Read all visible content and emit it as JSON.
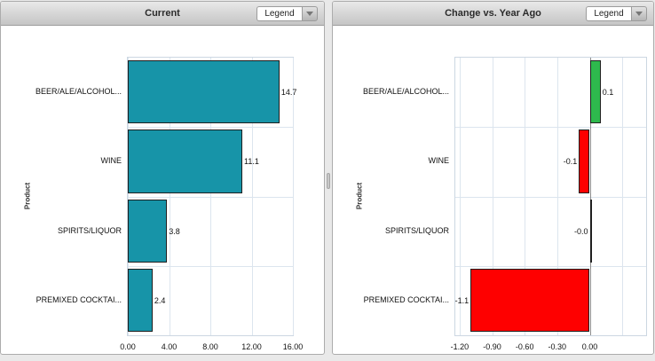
{
  "panels": [
    {
      "title": "Current",
      "legend_label": "Legend"
    },
    {
      "title": "Change vs. Year Ago",
      "legend_label": "Legend"
    }
  ],
  "splitter": {
    "orientation": "vertical"
  },
  "colors": {
    "bar_teal": "#1794a8",
    "bar_green": "#2eb94d",
    "bar_red": "#fe0000",
    "grid": "#dce5ee"
  },
  "chart_data": [
    {
      "type": "bar",
      "orientation": "horizontal",
      "title": "Current",
      "ylabel": "Product",
      "categories": [
        "BEER/ALE/ALCOHOL...",
        "WINE",
        "SPIRITS/LIQUOR",
        "PREMIXED COCKTAI..."
      ],
      "values": [
        14.7,
        11.1,
        3.8,
        2.4
      ],
      "value_labels": [
        "14.7",
        "11.1",
        "3.8",
        "2.4"
      ],
      "bar_colors": [
        "#1794a8",
        "#1794a8",
        "#1794a8",
        "#1794a8"
      ],
      "xlim": [
        0,
        16
      ],
      "grid_values": [
        0,
        4,
        8,
        12,
        16
      ],
      "tick_values": [
        0,
        4,
        8,
        12,
        16
      ],
      "tick_labels": [
        "0.00",
        "4.00",
        "8.00",
        "12.00",
        "16.00"
      ],
      "zero_line": false,
      "grid": true,
      "legend_position": "header-dropdown-collapsed"
    },
    {
      "type": "bar",
      "orientation": "horizontal",
      "title": "Change vs. Year Ago",
      "ylabel": "Product",
      "categories": [
        "BEER/ALE/ALCOHOL...",
        "WINE",
        "SPIRITS/LIQUOR",
        "PREMIXED COCKTAI..."
      ],
      "values": [
        0.1,
        -0.1,
        -0.0,
        -1.1
      ],
      "value_labels": [
        "0.1",
        "-0.1",
        "-0.0",
        "-1.1"
      ],
      "bar_colors": [
        "#2eb94d",
        "#fe0000",
        "#fe0000",
        "#fe0000"
      ],
      "xlim": [
        -1.24,
        0.52
      ],
      "grid_values": [
        -1.2,
        -0.9,
        -0.6,
        -0.3,
        0,
        0.3
      ],
      "tick_values": [
        -1.2,
        -0.9,
        -0.6,
        -0.3,
        0
      ],
      "tick_labels": [
        "-1.20",
        "-0.90",
        "-0.60",
        "-0.30",
        "0.00"
      ],
      "zero_line": true,
      "grid": true,
      "legend_position": "header-dropdown-collapsed"
    }
  ]
}
